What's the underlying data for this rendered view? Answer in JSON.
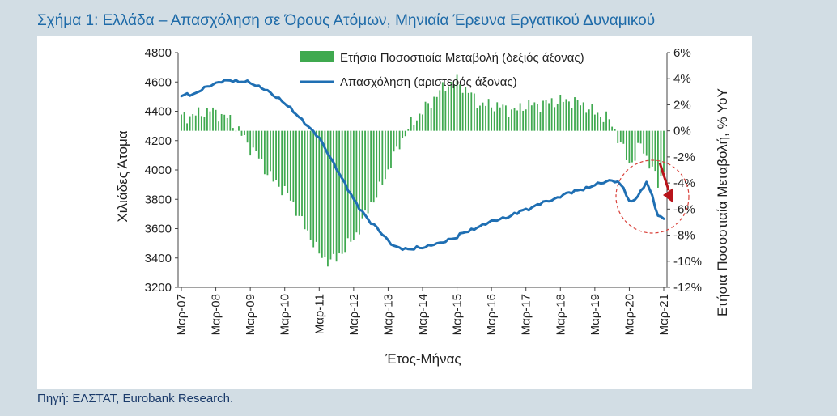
{
  "figure": {
    "title": "Σχήμα 1: Ελλάδα – Απασχόληση σε Όρους Ατόμων, Μηνιαία Έρευνα Εργατικού Δυναμικού",
    "source": "Πηγή: ΕΛΣΤΑΤ, Eurobank Research."
  },
  "colors": {
    "line": "#1f6fb3",
    "bars": "#3fa94f",
    "arrow": "#b8141b",
    "circle": "#d9413a",
    "title": "#1d6aa8",
    "background": "#d2dde4"
  },
  "chart_data": {
    "type": "bar+line",
    "title": "Σχήμα 1: Ελλάδα – Απασχόληση σε Όρους Ατόμων, Μηνιαία Έρευνα Εργατικού Δυναμικού",
    "xlabel": "Έτος-Μήνας",
    "ylabel_left": "Χιλιάδες Άτομα",
    "ylabel_right": "Ετήσια Ποσοστιαία Μεταβολή, % YoY",
    "ylim_left": [
      3200,
      4800
    ],
    "ylim_right": [
      -12,
      6
    ],
    "yticks_left": [
      "4800",
      "4600",
      "4400",
      "4200",
      "4000",
      "3800",
      "3600",
      "3400",
      "3200"
    ],
    "yticks_right": [
      "6%",
      "4%",
      "2%",
      "0%",
      "-2%",
      "-4%",
      "-6%",
      "-8%",
      "-10%",
      "-12%"
    ],
    "x_tick_labels": [
      "Mαρ-07",
      "Mαρ-08",
      "Mαρ-09",
      "Mαρ-10",
      "Mαρ-11",
      "Mαρ-12",
      "Mαρ-13",
      "Mαρ-14",
      "Mαρ-15",
      "Mαρ-16",
      "Mαρ-17",
      "Mαρ-18",
      "Mαρ-19",
      "Mαρ-20",
      "Mαρ-21"
    ],
    "legend": [
      "Ετήσια Ποσοστιαία Μεταβολή (δεξιός άξονας)",
      "Απασχόληση (αριστερός άξονας)"
    ],
    "legend_position": "top-center",
    "employment_knots": [
      [
        0,
        4500
      ],
      [
        2,
        4520
      ],
      [
        4,
        4510
      ],
      [
        6,
        4535
      ],
      [
        8,
        4560
      ],
      [
        10,
        4575
      ],
      [
        12,
        4590
      ],
      [
        14,
        4605
      ],
      [
        16,
        4610
      ],
      [
        18,
        4610
      ],
      [
        20,
        4600
      ],
      [
        22,
        4605
      ],
      [
        24,
        4595
      ],
      [
        26,
        4575
      ],
      [
        28,
        4560
      ],
      [
        30,
        4540
      ],
      [
        32,
        4510
      ],
      [
        34,
        4485
      ],
      [
        36,
        4455
      ],
      [
        38,
        4420
      ],
      [
        40,
        4380
      ],
      [
        42,
        4340
      ],
      [
        44,
        4300
      ],
      [
        46,
        4260
      ],
      [
        48,
        4220
      ],
      [
        50,
        4150
      ],
      [
        52,
        4080
      ],
      [
        54,
        4010
      ],
      [
        56,
        3940
      ],
      [
        58,
        3870
      ],
      [
        60,
        3800
      ],
      [
        62,
        3740
      ],
      [
        64,
        3690
      ],
      [
        66,
        3640
      ],
      [
        68,
        3610
      ],
      [
        70,
        3560
      ],
      [
        72,
        3520
      ],
      [
        74,
        3480
      ],
      [
        76,
        3470
      ],
      [
        78,
        3460
      ],
      [
        80,
        3460
      ],
      [
        82,
        3470
      ],
      [
        84,
        3470
      ],
      [
        86,
        3480
      ],
      [
        88,
        3495
      ],
      [
        90,
        3500
      ],
      [
        92,
        3515
      ],
      [
        94,
        3530
      ],
      [
        96,
        3540
      ],
      [
        98,
        3575
      ],
      [
        100,
        3580
      ],
      [
        102,
        3600
      ],
      [
        104,
        3615
      ],
      [
        106,
        3635
      ],
      [
        108,
        3650
      ],
      [
        110,
        3660
      ],
      [
        112,
        3670
      ],
      [
        114,
        3680
      ],
      [
        116,
        3700
      ],
      [
        118,
        3720
      ],
      [
        120,
        3730
      ],
      [
        122,
        3740
      ],
      [
        124,
        3765
      ],
      [
        126,
        3780
      ],
      [
        128,
        3790
      ],
      [
        130,
        3800
      ],
      [
        132,
        3820
      ],
      [
        134,
        3840
      ],
      [
        136,
        3850
      ],
      [
        138,
        3860
      ],
      [
        140,
        3870
      ],
      [
        142,
        3880
      ],
      [
        144,
        3900
      ],
      [
        146,
        3910
      ],
      [
        148,
        3920
      ],
      [
        150,
        3930
      ],
      [
        152,
        3915
      ],
      [
        154,
        3880
      ],
      [
        156,
        3780
      ],
      [
        158,
        3800
      ],
      [
        160,
        3850
      ],
      [
        162,
        3920
      ],
      [
        164,
        3820
      ],
      [
        165,
        3750
      ],
      [
        166,
        3690
      ],
      [
        168,
        3665
      ]
    ],
    "yoy_knots": [
      [
        0,
        1.0
      ],
      [
        6,
        1.3
      ],
      [
        10,
        1.6
      ],
      [
        14,
        1.2
      ],
      [
        16,
        1.0
      ],
      [
        18,
        0.6
      ],
      [
        20,
        0.0
      ],
      [
        22,
        -0.6
      ],
      [
        24,
        -1.3
      ],
      [
        26,
        -1.7
      ],
      [
        28,
        -2.5
      ],
      [
        30,
        -3.2
      ],
      [
        32,
        -3.8
      ],
      [
        34,
        -4.2
      ],
      [
        36,
        -4.6
      ],
      [
        38,
        -5.3
      ],
      [
        40,
        -6.0
      ],
      [
        42,
        -7.0
      ],
      [
        44,
        -7.8
      ],
      [
        46,
        -8.5
      ],
      [
        48,
        -9.5
      ],
      [
        50,
        -9.8
      ],
      [
        52,
        -10.0
      ],
      [
        54,
        -9.8
      ],
      [
        56,
        -9.2
      ],
      [
        58,
        -8.8
      ],
      [
        60,
        -8.2
      ],
      [
        62,
        -7.5
      ],
      [
        64,
        -6.5
      ],
      [
        66,
        -5.5
      ],
      [
        68,
        -5.0
      ],
      [
        70,
        -4.0
      ],
      [
        72,
        -3.0
      ],
      [
        74,
        -2.0
      ],
      [
        76,
        -1.0
      ],
      [
        78,
        -0.2
      ],
      [
        80,
        0.5
      ],
      [
        84,
        1.5
      ],
      [
        88,
        2.5
      ],
      [
        92,
        3.5
      ],
      [
        96,
        3.8
      ],
      [
        100,
        3.0
      ],
      [
        104,
        2.0
      ],
      [
        108,
        2.0
      ],
      [
        112,
        1.8
      ],
      [
        116,
        1.5
      ],
      [
        120,
        2.0
      ],
      [
        124,
        2.0
      ],
      [
        128,
        2.2
      ],
      [
        132,
        2.3
      ],
      [
        136,
        2.3
      ],
      [
        140,
        2.0
      ],
      [
        144,
        1.4
      ],
      [
        148,
        1.0
      ],
      [
        150,
        0.5
      ],
      [
        152,
        -0.5
      ],
      [
        154,
        -1.5
      ],
      [
        156,
        -2.5
      ],
      [
        158,
        -2.0
      ],
      [
        160,
        -1.0
      ],
      [
        162,
        -2.0
      ],
      [
        164,
        -3.0
      ],
      [
        166,
        -4.0
      ],
      [
        168,
        -3.0
      ]
    ]
  }
}
